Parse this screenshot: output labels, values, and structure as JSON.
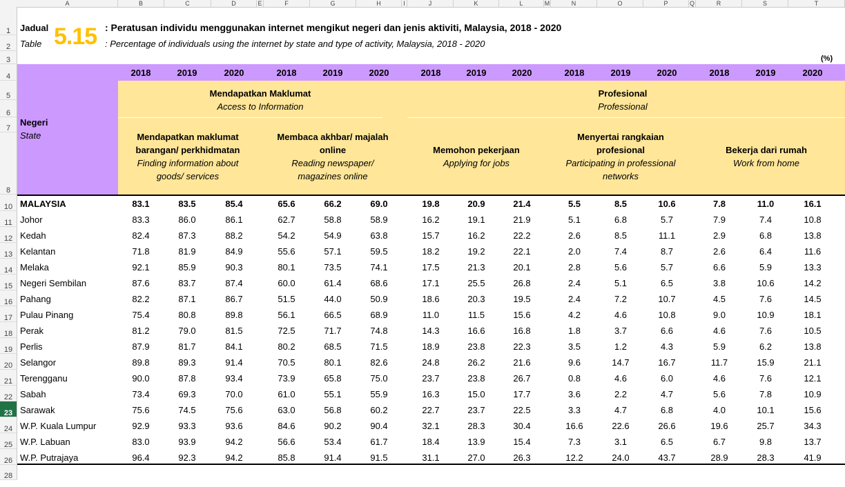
{
  "columns": [
    "A",
    "B",
    "C",
    "D",
    "E",
    "F",
    "G",
    "H",
    "I",
    "J",
    "K",
    "L",
    "M",
    "N",
    "O",
    "P",
    "Q",
    "R",
    "S",
    "T"
  ],
  "rows": [
    "1",
    "2",
    "3",
    "4",
    "5",
    "6",
    "7",
    "8",
    "10",
    "11",
    "12",
    "13",
    "14",
    "15",
    "16",
    "17",
    "18",
    "19",
    "20",
    "21",
    "22",
    "23",
    "24",
    "25",
    "26",
    "28"
  ],
  "selected_row": "23",
  "title": {
    "jadual": "Jadual",
    "table": "Table",
    "number": "5.15",
    "malay": ": Peratusan individu menggunakan internet mengikut negeri dan jenis aktiviti, Malaysia, 2018 - 2020",
    "english": ": Percentage of individuals using the internet by state and type of activity, Malaysia, 2018 - 2020",
    "unit": "(%)"
  },
  "header": {
    "state_malay": "Negeri",
    "state_english": "State",
    "years": [
      "2018",
      "2019",
      "2020",
      "2018",
      "2019",
      "2020",
      "2018",
      "2019",
      "2020",
      "2018",
      "2019",
      "2020",
      "2018",
      "2019",
      "2020"
    ],
    "group1_malay": "Mendapatkan Maklumat",
    "group1_english": "Access to Information",
    "group2_malay": "Profesional",
    "group2_english": "Professional",
    "sub": [
      {
        "malay1": "Mendapatkan maklumat",
        "malay2": "barangan/ perkhidmatan",
        "eng1": "Finding information about",
        "eng2": "goods/ services"
      },
      {
        "malay1": "Membaca akhbar/ majalah",
        "malay2": "online",
        "eng1": "Reading newspaper/",
        "eng2": "magazines online"
      },
      {
        "malay1": "Memohon pekerjaan",
        "malay2": "",
        "eng1": "Applying for jobs",
        "eng2": ""
      },
      {
        "malay1": "Menyertai rangkaian",
        "malay2": "profesional",
        "eng1": "Participating in professional",
        "eng2": "networks"
      },
      {
        "malay1": "Bekerja dari rumah",
        "malay2": "",
        "eng1": "Work from home",
        "eng2": ""
      }
    ]
  },
  "data": [
    {
      "state": "MALAYSIA",
      "values": [
        "83.1",
        "83.5",
        "85.4",
        "65.6",
        "66.2",
        "69.0",
        "19.8",
        "20.9",
        "21.4",
        "5.5",
        "8.5",
        "10.6",
        "7.8",
        "11.0",
        "16.1"
      ]
    },
    {
      "state": "Johor",
      "values": [
        "83.3",
        "86.0",
        "86.1",
        "62.7",
        "58.8",
        "58.9",
        "16.2",
        "19.1",
        "21.9",
        "5.1",
        "6.8",
        "5.7",
        "7.9",
        "7.4",
        "10.8"
      ]
    },
    {
      "state": "Kedah",
      "values": [
        "82.4",
        "87.3",
        "88.2",
        "54.2",
        "54.9",
        "63.8",
        "15.7",
        "16.2",
        "22.2",
        "2.6",
        "8.5",
        "11.1",
        "2.9",
        "6.8",
        "13.8"
      ]
    },
    {
      "state": "Kelantan",
      "values": [
        "71.8",
        "81.9",
        "84.9",
        "55.6",
        "57.1",
        "59.5",
        "18.2",
        "19.2",
        "22.1",
        "2.0",
        "7.4",
        "8.7",
        "2.6",
        "6.4",
        "11.6"
      ]
    },
    {
      "state": "Melaka",
      "values": [
        "92.1",
        "85.9",
        "90.3",
        "80.1",
        "73.5",
        "74.1",
        "17.5",
        "21.3",
        "20.1",
        "2.8",
        "5.6",
        "5.7",
        "6.6",
        "5.9",
        "13.3"
      ]
    },
    {
      "state": "Negeri Sembilan",
      "values": [
        "87.6",
        "83.7",
        "87.4",
        "60.0",
        "61.4",
        "68.6",
        "17.1",
        "25.5",
        "26.8",
        "2.4",
        "5.1",
        "6.5",
        "3.8",
        "10.6",
        "14.2"
      ]
    },
    {
      "state": "Pahang",
      "values": [
        "82.2",
        "87.1",
        "86.7",
        "51.5",
        "44.0",
        "50.9",
        "18.6",
        "20.3",
        "19.5",
        "2.4",
        "7.2",
        "10.7",
        "4.5",
        "7.6",
        "14.5"
      ]
    },
    {
      "state": "Pulau Pinang",
      "values": [
        "75.4",
        "80.8",
        "89.8",
        "56.1",
        "66.5",
        "68.9",
        "11.0",
        "11.5",
        "15.6",
        "4.2",
        "4.6",
        "10.8",
        "9.0",
        "10.9",
        "18.1"
      ]
    },
    {
      "state": "Perak",
      "values": [
        "81.2",
        "79.0",
        "81.5",
        "72.5",
        "71.7",
        "74.8",
        "14.3",
        "16.6",
        "16.8",
        "1.8",
        "3.7",
        "6.6",
        "4.6",
        "7.6",
        "10.5"
      ]
    },
    {
      "state": "Perlis",
      "values": [
        "87.9",
        "81.7",
        "84.1",
        "80.2",
        "68.5",
        "71.5",
        "18.9",
        "23.8",
        "22.3",
        "3.5",
        "1.2",
        "4.3",
        "5.9",
        "6.2",
        "13.8"
      ]
    },
    {
      "state": "Selangor",
      "values": [
        "89.8",
        "89.3",
        "91.4",
        "70.5",
        "80.1",
        "82.6",
        "24.8",
        "26.2",
        "21.6",
        "9.6",
        "14.7",
        "16.7",
        "11.7",
        "15.9",
        "21.1"
      ]
    },
    {
      "state": "Terengganu",
      "values": [
        "90.0",
        "87.8",
        "93.4",
        "73.9",
        "65.8",
        "75.0",
        "23.7",
        "23.8",
        "26.7",
        "0.8",
        "4.6",
        "6.0",
        "4.6",
        "7.6",
        "12.1"
      ]
    },
    {
      "state": "Sabah",
      "values": [
        "73.4",
        "69.3",
        "70.0",
        "61.0",
        "55.1",
        "55.9",
        "16.3",
        "15.0",
        "17.7",
        "3.6",
        "2.2",
        "4.7",
        "5.6",
        "7.8",
        "10.9"
      ]
    },
    {
      "state": "Sarawak",
      "values": [
        "75.6",
        "74.5",
        "75.6",
        "63.0",
        "56.8",
        "60.2",
        "22.7",
        "23.7",
        "22.5",
        "3.3",
        "4.7",
        "6.8",
        "4.0",
        "10.1",
        "15.6"
      ]
    },
    {
      "state": "W.P. Kuala Lumpur",
      "values": [
        "92.9",
        "93.3",
        "93.6",
        "84.6",
        "90.2",
        "90.4",
        "32.1",
        "28.3",
        "30.4",
        "16.6",
        "22.6",
        "26.6",
        "19.6",
        "25.7",
        "34.3"
      ]
    },
    {
      "state": "W.P. Labuan",
      "values": [
        "83.0",
        "93.9",
        "94.2",
        "56.6",
        "53.4",
        "61.7",
        "18.4",
        "13.9",
        "15.4",
        "7.3",
        "3.1",
        "6.5",
        "6.7",
        "9.8",
        "13.7"
      ]
    },
    {
      "state": "W.P. Putrajaya",
      "values": [
        "96.4",
        "92.3",
        "94.2",
        "85.8",
        "91.4",
        "91.5",
        "31.1",
        "27.0",
        "26.3",
        "12.2",
        "24.0",
        "43.7",
        "28.9",
        "28.3",
        "41.9"
      ]
    }
  ]
}
